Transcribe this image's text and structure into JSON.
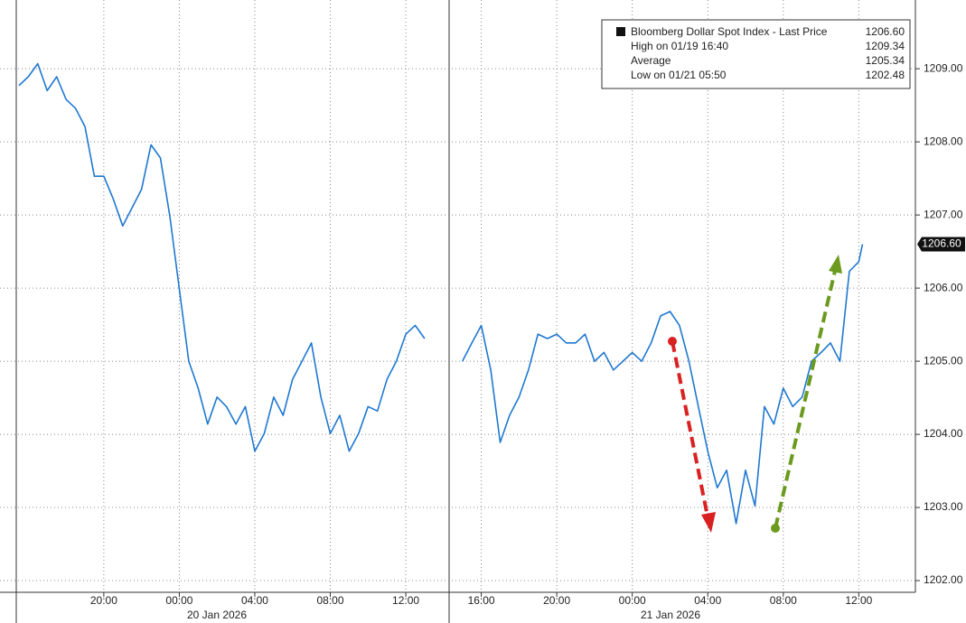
{
  "chart_data": {
    "type": "line",
    "legend": {
      "title": "Bloomberg Dollar Spot Index - Last Price",
      "last": "1206.60",
      "rows": [
        [
          "High on 01/19 16:40",
          "1209.34"
        ],
        [
          "Average",
          "1205.34"
        ],
        [
          "Low on 01/21 05:50",
          "1202.48"
        ]
      ]
    },
    "last_price_label": "1206.60",
    "date_labels": [
      "20 Jan 2026",
      "21 Jan 2026"
    ],
    "x": [
      15.5,
      16,
      16.5,
      17,
      17.5,
      18,
      18.5,
      19,
      19.5,
      20,
      20.5,
      21,
      21.5,
      22,
      22.5,
      23,
      23.5,
      24,
      24.5,
      25,
      25.5,
      26,
      26.5,
      27,
      27.5,
      28,
      28.5,
      29,
      29.5,
      30,
      30.5,
      31,
      31.5,
      32,
      32.5,
      33,
      33.5,
      34,
      34.5,
      35,
      35.5,
      36,
      36.5,
      37,
      38,
      39,
      39.5,
      40,
      40.5,
      41,
      41.5,
      42,
      42.5,
      43,
      43.5,
      44,
      44.5,
      45,
      45.5,
      46,
      46.5,
      47,
      47.5,
      48,
      48.5,
      49,
      49.5,
      50,
      50.5,
      51,
      51.5,
      52,
      52.5,
      53,
      53.5,
      54,
      54.5,
      55,
      55.5,
      56,
      56.5,
      57,
      57.5,
      58,
      58.5,
      59,
      59.5,
      60,
      60.2
    ],
    "series": [
      {
        "name": "Bloomberg Dollar Spot Index",
        "color": "#1f78d1",
        "values": [
          1208.77,
          1208.89,
          1209.07,
          1208.7,
          1208.89,
          1208.58,
          1208.46,
          1208.21,
          1207.53,
          1207.53,
          1207.22,
          1206.85,
          1207.1,
          1207.35,
          1207.96,
          1207.78,
          1206.98,
          1205.99,
          1205.0,
          1204.63,
          1204.14,
          1204.51,
          1204.38,
          1204.14,
          1204.38,
          1203.77,
          1204.01,
          1204.51,
          1204.26,
          1204.75,
          1205.0,
          1205.25,
          1204.51,
          1204.01,
          1204.26,
          1203.77,
          1204.01,
          1204.38,
          1204.32,
          1204.75,
          1205.0,
          1205.37,
          1205.49,
          1205.31,
          null,
          1205.0,
          1205.25,
          1205.49,
          1204.88,
          1203.89,
          1204.26,
          1204.51,
          1204.88,
          1205.37,
          1205.31,
          1205.37,
          1205.25,
          1205.25,
          1205.37,
          1205.0,
          1205.12,
          1204.88,
          1205.0,
          1205.12,
          1205.0,
          1205.25,
          1205.62,
          1205.68,
          1205.49,
          1205.0,
          1204.38,
          1203.77,
          1203.27,
          1203.51,
          1202.78,
          1203.51,
          1203.02,
          1204.38,
          1204.14,
          1204.63,
          1204.38,
          1204.51,
          1205.0,
          1205.12,
          1205.25,
          1205.0,
          1206.23,
          1206.36,
          1206.6
        ]
      }
    ],
    "xlim": [
      14.5,
      63
    ],
    "xticks": [
      {
        "value": 20,
        "label": "20:00"
      },
      {
        "value": 24,
        "label": "00:00"
      },
      {
        "value": 28,
        "label": "04:00"
      },
      {
        "value": 32,
        "label": "08:00"
      },
      {
        "value": 36,
        "label": "12:00"
      },
      {
        "value": 40,
        "label": "16:00"
      },
      {
        "value": 44,
        "label": "20:00"
      },
      {
        "value": 48,
        "label": "00:00"
      },
      {
        "value": 52,
        "label": "04:00"
      },
      {
        "value": 56,
        "label": "08:00"
      },
      {
        "value": 60,
        "label": "12:00"
      }
    ],
    "ylim": [
      1201.84,
      1209.94
    ],
    "yticks": [
      {
        "value": 1202,
        "label": "1202.00"
      },
      {
        "value": 1203,
        "label": "1203.00"
      },
      {
        "value": 1204,
        "label": "1204.00"
      },
      {
        "value": 1205,
        "label": "1205.00"
      },
      {
        "value": 1206,
        "label": "1206.00"
      },
      {
        "value": 1207,
        "label": "1207.00"
      },
      {
        "value": 1208,
        "label": "1208.00"
      },
      {
        "value": 1209,
        "label": "1209.00"
      }
    ],
    "grid": true
  }
}
